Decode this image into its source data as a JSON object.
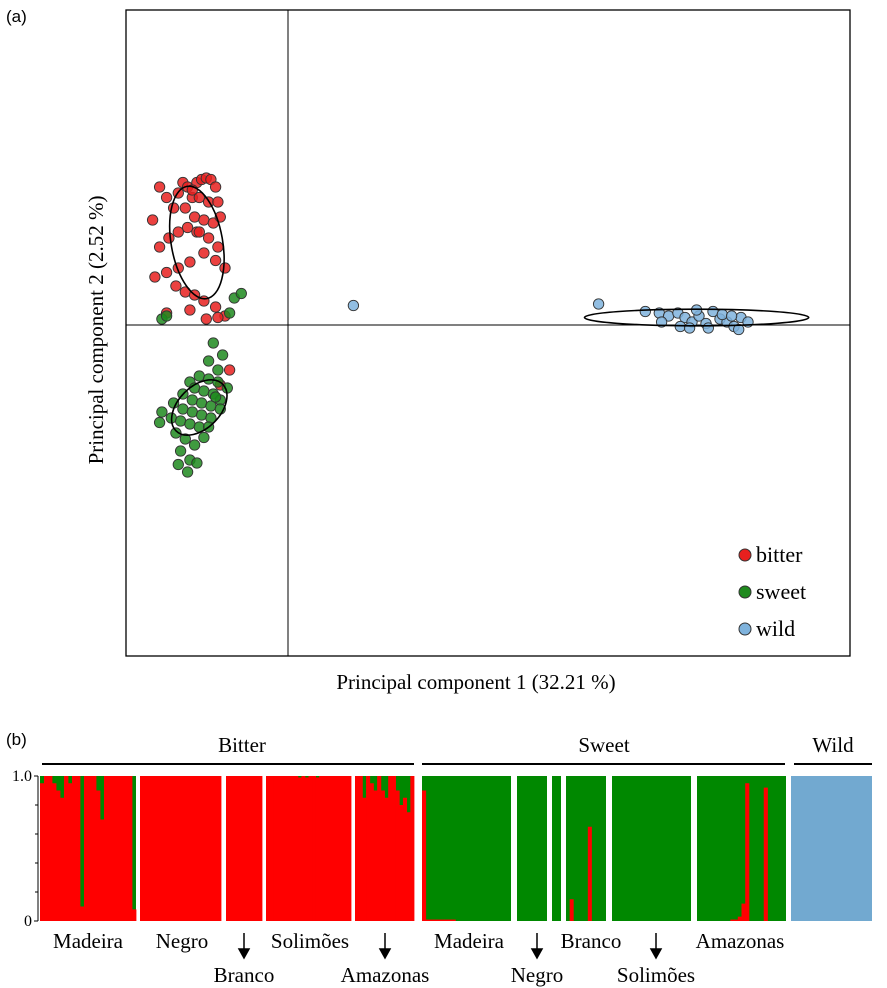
{
  "chart_data": [
    {
      "type": "scatter",
      "panel_label": "(a)",
      "xlabel": "Principal component 1 (32.21 %)",
      "ylabel": "Principal component 2 (2.52 %)",
      "xlim": [
        -1.0,
        3.0
      ],
      "ylim": [
        -2.0,
        2.0
      ],
      "grid": false,
      "legend_position": "bottom-right",
      "series": [
        {
          "name": "bitter",
          "color": "#e8201e",
          "points": [
            [
              -0.58,
              0.7
            ],
            [
              -0.55,
              0.92
            ],
            [
              -0.52,
              0.85
            ],
            [
              -0.49,
              0.78
            ],
            [
              -0.47,
              0.88
            ],
            [
              -0.45,
              0.95
            ],
            [
              -0.43,
              0.92
            ],
            [
              -0.41,
              0.85
            ],
            [
              -0.39,
              0.95
            ],
            [
              -0.37,
              0.97
            ],
            [
              -0.35,
              0.98
            ],
            [
              -0.33,
              0.97
            ],
            [
              -0.31,
              0.92
            ],
            [
              -0.38,
              0.85
            ],
            [
              -0.34,
              0.82
            ],
            [
              -0.3,
              0.82
            ],
            [
              -0.44,
              0.78
            ],
            [
              -0.4,
              0.72
            ],
            [
              -0.36,
              0.7
            ],
            [
              -0.32,
              0.68
            ],
            [
              -0.29,
              0.72
            ],
            [
              -0.43,
              0.65
            ],
            [
              -0.39,
              0.62
            ],
            [
              -0.34,
              0.58
            ],
            [
              -0.3,
              0.52
            ],
            [
              -0.47,
              0.62
            ],
            [
              -0.51,
              0.58
            ],
            [
              -0.55,
              0.52
            ],
            [
              -0.36,
              0.48
            ],
            [
              -0.31,
              0.43
            ],
            [
              -0.27,
              0.38
            ],
            [
              -0.42,
              0.42
            ],
            [
              -0.47,
              0.38
            ],
            [
              -0.52,
              0.35
            ],
            [
              -0.57,
              0.32
            ],
            [
              -0.48,
              0.26
            ],
            [
              -0.44,
              0.22
            ],
            [
              -0.4,
              0.2
            ],
            [
              -0.36,
              0.16
            ],
            [
              -0.31,
              0.12
            ],
            [
              -0.27,
              0.06
            ],
            [
              -0.52,
              0.08
            ],
            [
              -0.42,
              0.1
            ],
            [
              -0.35,
              0.04
            ],
            [
              -0.3,
              0.05
            ],
            [
              -0.25,
              -0.3
            ],
            [
              -0.29,
              -0.4
            ],
            [
              -0.38,
              0.62
            ],
            [
              -0.41,
              0.9
            ]
          ]
        },
        {
          "name": "sweet",
          "color": "#1f8a1e",
          "points": [
            [
              -0.23,
              0.18
            ],
            [
              -0.2,
              0.21
            ],
            [
              -0.25,
              0.08
            ],
            [
              -0.54,
              0.04
            ],
            [
              -0.52,
              0.06
            ],
            [
              -0.32,
              -0.12
            ],
            [
              -0.28,
              -0.2
            ],
            [
              -0.34,
              -0.24
            ],
            [
              -0.3,
              -0.3
            ],
            [
              -0.38,
              -0.34
            ],
            [
              -0.34,
              -0.36
            ],
            [
              -0.3,
              -0.38
            ],
            [
              -0.26,
              -0.42
            ],
            [
              -0.42,
              -0.38
            ],
            [
              -0.4,
              -0.42
            ],
            [
              -0.36,
              -0.44
            ],
            [
              -0.32,
              -0.46
            ],
            [
              -0.29,
              -0.5
            ],
            [
              -0.45,
              -0.46
            ],
            [
              -0.41,
              -0.5
            ],
            [
              -0.37,
              -0.52
            ],
            [
              -0.33,
              -0.54
            ],
            [
              -0.29,
              -0.56
            ],
            [
              -0.49,
              -0.52
            ],
            [
              -0.45,
              -0.56
            ],
            [
              -0.41,
              -0.58
            ],
            [
              -0.37,
              -0.6
            ],
            [
              -0.33,
              -0.62
            ],
            [
              -0.54,
              -0.58
            ],
            [
              -0.5,
              -0.62
            ],
            [
              -0.46,
              -0.64
            ],
            [
              -0.42,
              -0.66
            ],
            [
              -0.38,
              -0.68
            ],
            [
              -0.34,
              -0.68
            ],
            [
              -0.48,
              -0.72
            ],
            [
              -0.44,
              -0.76
            ],
            [
              -0.4,
              -0.8
            ],
            [
              -0.36,
              -0.75
            ],
            [
              -0.46,
              -0.84
            ],
            [
              -0.42,
              -0.9
            ],
            [
              -0.47,
              -0.93
            ],
            [
              -0.43,
              -0.98
            ],
            [
              -0.39,
              -0.92
            ],
            [
              -0.55,
              -0.65
            ],
            [
              -0.31,
              -0.48
            ]
          ]
        },
        {
          "name": "wild",
          "color": "#7fb3dd",
          "points": [
            [
              0.28,
              0.13
            ],
            [
              1.33,
              0.14
            ],
            [
              1.53,
              0.09
            ],
            [
              1.59,
              0.08
            ],
            [
              1.63,
              0.06
            ],
            [
              1.67,
              0.08
            ],
            [
              1.7,
              0.05
            ],
            [
              1.73,
              0.02
            ],
            [
              1.76,
              0.06
            ],
            [
              1.79,
              0.01
            ],
            [
              1.82,
              0.09
            ],
            [
              1.85,
              0.04
            ],
            [
              1.88,
              0.02
            ],
            [
              1.91,
              -0.01
            ],
            [
              1.94,
              0.05
            ],
            [
              1.97,
              0.02
            ],
            [
              1.75,
              0.1
            ],
            [
              1.86,
              0.07
            ],
            [
              1.68,
              -0.01
            ],
            [
              1.8,
              -0.02
            ],
            [
              1.6,
              0.02
            ],
            [
              1.72,
              -0.02
            ],
            [
              1.9,
              0.06
            ],
            [
              1.93,
              -0.03
            ]
          ]
        }
      ],
      "ellipses": [
        {
          "series": "bitter",
          "cx": -0.39,
          "cy": 0.55,
          "rx": 0.11,
          "ry": 0.38,
          "rotate": -10
        },
        {
          "series": "sweet",
          "cx": -0.38,
          "cy": -0.55,
          "rx": 0.09,
          "ry": 0.22,
          "rotate": 45
        },
        {
          "series": "wild",
          "cx": 1.75,
          "cy": 0.05,
          "rx": 0.48,
          "ry": 0.055,
          "rotate": 0
        }
      ]
    },
    {
      "type": "bar",
      "panel_label": "(b)",
      "ylim": [
        0,
        1.0
      ],
      "yticks": [
        "0",
        "1.0"
      ],
      "group_headers": [
        "Bitter",
        "Sweet",
        "Wild"
      ],
      "colors": {
        "bitter": "#ff0000",
        "sweet": "#008800",
        "wild": "#72a9d0"
      },
      "blocks": [
        {
          "group": "Bitter",
          "region": "Madeira",
          "n": 24,
          "red": [
            0.95,
            1,
            1,
            0.95,
            0.9,
            0.85,
            1,
            0.95,
            1,
            1,
            0.1,
            1,
            1,
            1,
            0.9,
            0.7,
            1,
            1,
            1,
            1,
            1,
            1,
            1,
            0.08
          ]
        },
        {
          "group": "Bitter",
          "region": "Negro",
          "n": 24,
          "red": [
            1,
            1,
            1,
            1,
            1,
            1,
            1,
            1,
            1,
            1,
            1,
            1,
            1,
            1,
            1,
            1,
            1,
            1,
            1,
            1,
            1,
            1,
            1,
            1
          ]
        },
        {
          "group": "Bitter",
          "region": "Branco",
          "n": 9,
          "red": [
            1,
            1,
            1,
            1,
            1,
            1,
            1,
            1,
            1
          ]
        },
        {
          "group": "Bitter",
          "region": "Solimões",
          "n": 24,
          "red": [
            1,
            1,
            1,
            1,
            1,
            1,
            1,
            1,
            1,
            0.99,
            1,
            0.99,
            1,
            1,
            0.99,
            1,
            1,
            1,
            1,
            1,
            1,
            1,
            1,
            1
          ]
        },
        {
          "group": "Bitter",
          "region": "Amazonas",
          "n": 16,
          "red": [
            1,
            1,
            0.85,
            1,
            0.95,
            0.9,
            1,
            0.9,
            0.85,
            1,
            1,
            0.9,
            0.8,
            0.85,
            0.75,
            1
          ]
        },
        {
          "group": "Sweet",
          "region": "Madeira",
          "n": 24,
          "red": [
            0.9,
            0.01,
            0.01,
            0.01,
            0.01,
            0.01,
            0.01,
            0.01,
            0.01,
            0,
            0,
            0,
            0,
            0,
            0,
            0,
            0,
            0,
            0,
            0,
            0,
            0,
            0,
            0
          ]
        },
        {
          "group": "Sweet",
          "region": "Negro",
          "n": 9,
          "red": [
            0,
            0,
            0,
            0,
            0,
            0,
            0,
            0,
            0
          ]
        },
        {
          "group": "Sweet",
          "region": "Negro",
          "n": 3,
          "red": [
            0,
            0,
            0
          ]
        },
        {
          "group": "Sweet",
          "region": "Branco",
          "n": 11,
          "red": [
            0,
            0.15,
            0,
            0,
            0,
            0,
            0.65,
            0,
            0,
            0,
            0
          ]
        },
        {
          "group": "Sweet",
          "region": "Solimões",
          "n": 22,
          "red": [
            0,
            0,
            0,
            0,
            0,
            0,
            0,
            0,
            0,
            0,
            0,
            0,
            0,
            0,
            0,
            0,
            0,
            0,
            0,
            0,
            0,
            0
          ]
        },
        {
          "group": "Sweet",
          "region": "Amazonas",
          "n": 24,
          "red": [
            0,
            0,
            0,
            0,
            0,
            0,
            0,
            0,
            0,
            0.01,
            0.01,
            0.03,
            0.12,
            0.95,
            0,
            0,
            0,
            0,
            0.92,
            0,
            0,
            0,
            0,
            0
          ]
        },
        {
          "group": "Wild",
          "region": "",
          "n": 24,
          "red": [
            0,
            0,
            0,
            0,
            0,
            0,
            0,
            0,
            0,
            0,
            0,
            0,
            0,
            0,
            0,
            0,
            0,
            0,
            0,
            0,
            0,
            0,
            0,
            0
          ]
        }
      ],
      "region_labels_top": [
        "Madeira",
        "Negro",
        "Solimões",
        "Madeira",
        "Branco",
        "Amazonas"
      ],
      "region_labels_bottom": [
        "Branco",
        "Amazonas",
        "Negro",
        "Solimões"
      ]
    }
  ]
}
